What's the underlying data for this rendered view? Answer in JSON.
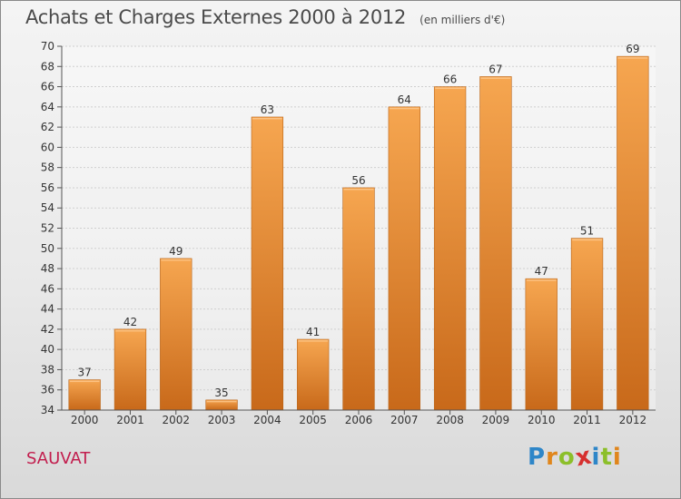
{
  "header": {
    "title": "Achats et Charges Externes 2000 à 2012",
    "subtitle": "(en milliers d'€)"
  },
  "footer": {
    "city": "SAUVAT",
    "brand_letters": [
      {
        "ch": "P",
        "color": "#2e86c8"
      },
      {
        "ch": "r",
        "color": "#e0861c"
      },
      {
        "ch": "o",
        "color": "#8cbf2a"
      },
      {
        "ch": "x",
        "color": "#d6302f"
      },
      {
        "ch": "i",
        "color": "#2e86c8"
      },
      {
        "ch": "t",
        "color": "#8cbf2a"
      },
      {
        "ch": "i",
        "color": "#e0861c"
      }
    ]
  },
  "chart_data": {
    "type": "bar",
    "categories": [
      "2000",
      "2001",
      "2002",
      "2003",
      "2004",
      "2005",
      "2006",
      "2007",
      "2008",
      "2009",
      "2010",
      "2011",
      "2012"
    ],
    "values": [
      37,
      42,
      49,
      35,
      63,
      41,
      56,
      64,
      66,
      67,
      47,
      51,
      69
    ],
    "ylim": [
      34,
      70
    ],
    "ytick_step": 2,
    "grid": true,
    "bar_color_light": "#f6a650",
    "bar_color_dark": "#c8691a",
    "data_labels": true
  }
}
